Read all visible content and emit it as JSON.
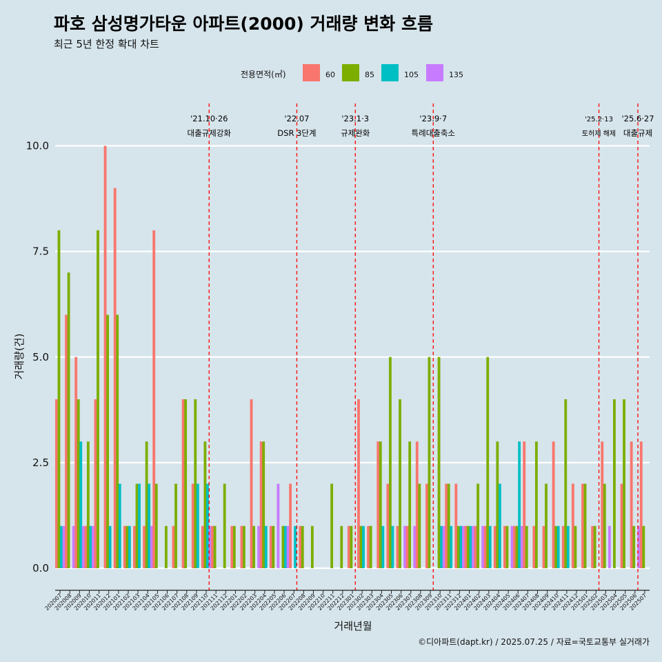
{
  "header": {
    "title": "파호 삼성명가타운 아파트(2000) 거래량 변화 흐름",
    "subtitle": "최근 5년 한정 확대 차트"
  },
  "legend": {
    "title": "전용면적(㎡)",
    "items": [
      {
        "label": "60",
        "color": "#f8766d"
      },
      {
        "label": "85",
        "color": "#7cae00"
      },
      {
        "label": "105",
        "color": "#00bfc4"
      },
      {
        "label": "135",
        "color": "#c77cff"
      }
    ]
  },
  "caption": "©디아파트(dapt.kr) / 2025.07.25 / 자료=국토교통부 실거래가",
  "chart_data": {
    "type": "bar",
    "xlabel": "거래년월",
    "ylabel": "거래량(건)",
    "ylim": [
      0,
      10
    ],
    "yticks": [
      "0.0",
      "2.5",
      "5.0",
      "7.5",
      "10.0"
    ],
    "grid": "horizontal",
    "legend_position": "top",
    "categories": [
      "202007",
      "202008",
      "202009",
      "202010",
      "202011",
      "202012",
      "202101",
      "202102",
      "202103",
      "202104",
      "202105",
      "202106",
      "202107",
      "202108",
      "202109",
      "202110",
      "202111",
      "202112",
      "202201",
      "202202",
      "202203",
      "202204",
      "202205",
      "202206",
      "202207",
      "202208",
      "202209",
      "202210",
      "202211",
      "202212",
      "202301",
      "202302",
      "202303",
      "202304",
      "202305",
      "202306",
      "202307",
      "202308",
      "202309",
      "202310",
      "202311",
      "202312",
      "202401",
      "202402",
      "202403",
      "202404",
      "202405",
      "202406",
      "202407",
      "202408",
      "202409",
      "202410",
      "202411",
      "202412",
      "202501",
      "202502",
      "202503",
      "202504",
      "202505",
      "202506",
      "202507"
    ],
    "series": [
      {
        "name": "60",
        "values": [
          4,
          6,
          5,
          1,
          4,
          10,
          9,
          1,
          1,
          1,
          8,
          0,
          1,
          4,
          2,
          1,
          1,
          0,
          1,
          1,
          4,
          3,
          1,
          0,
          2,
          1,
          0,
          0,
          0,
          0,
          1,
          4,
          1,
          3,
          2,
          1,
          1,
          3,
          2,
          0,
          2,
          2,
          1,
          1,
          1,
          1,
          1,
          1,
          3,
          1,
          1,
          3,
          1,
          2,
          2,
          1,
          3,
          0,
          2,
          3,
          3
        ]
      },
      {
        "name": "85",
        "values": [
          8,
          7,
          4,
          3,
          8,
          6,
          6,
          1,
          2,
          3,
          2,
          1,
          2,
          4,
          4,
          3,
          1,
          2,
          1,
          1,
          1,
          3,
          1,
          1,
          0,
          1,
          1,
          0,
          2,
          1,
          1,
          1,
          1,
          3,
          5,
          4,
          3,
          2,
          5,
          5,
          2,
          1,
          1,
          2,
          5,
          3,
          1,
          1,
          1,
          3,
          2,
          1,
          4,
          1,
          2,
          1,
          2,
          4,
          4,
          1,
          1
        ]
      },
      {
        "name": "105",
        "values": [
          1,
          0,
          3,
          1,
          0,
          1,
          2,
          1,
          2,
          2,
          0,
          0,
          0,
          0,
          2,
          2,
          0,
          0,
          0,
          0,
          0,
          1,
          0,
          1,
          1,
          0,
          0,
          0,
          0,
          0,
          0,
          1,
          0,
          1,
          1,
          0,
          0,
          0,
          0,
          1,
          1,
          1,
          1,
          0,
          1,
          2,
          0,
          3,
          0,
          0,
          0,
          1,
          1,
          0,
          0,
          0,
          0,
          0,
          0,
          0,
          0
        ]
      },
      {
        "name": "135",
        "values": [
          1,
          1,
          1,
          1,
          0,
          0,
          0,
          0,
          0,
          1,
          0,
          0,
          0,
          0,
          0,
          1,
          0,
          0,
          0,
          0,
          1,
          0,
          2,
          1,
          0,
          0,
          0,
          0,
          0,
          0,
          0,
          0,
          0,
          0,
          0,
          1,
          1,
          0,
          0,
          1,
          0,
          1,
          1,
          1,
          0,
          0,
          1,
          1,
          0,
          0,
          0,
          0,
          0,
          0,
          0,
          0,
          1,
          0,
          0,
          1,
          0
        ]
      }
    ],
    "annotations": [
      {
        "category": "202110",
        "date": "'21.10·26",
        "text": "대출규제강화"
      },
      {
        "category": "202207",
        "date": "'22.07",
        "text": "DSR 3단계"
      },
      {
        "category": "202301",
        "date": "'23.1·3",
        "text": "규제완화"
      },
      {
        "category": "202309",
        "date": "'23.9·7",
        "text": "특례대출축소"
      },
      {
        "category": "202502",
        "date": "'25.2·13",
        "text": "토허제 해제"
      },
      {
        "category": "202506",
        "date": "'25.6·27",
        "text": "대출규제"
      }
    ]
  }
}
